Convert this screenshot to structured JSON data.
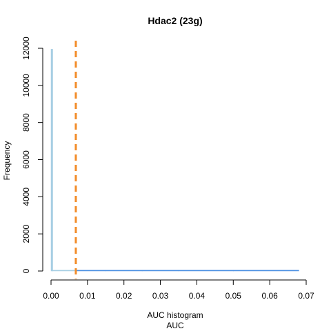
{
  "chart_data": {
    "type": "bar",
    "title": "Hdac2 (23g)",
    "xlabel": "AUC histogram",
    "xlabel_sub": "AUC",
    "ylabel": "Frequency",
    "xlim": [
      0,
      0.068
    ],
    "ylim": [
      0,
      12000
    ],
    "x_ticks": [
      "0.00",
      "0.01",
      "0.02",
      "0.03",
      "0.04",
      "0.05",
      "0.06",
      "0.07"
    ],
    "x_tick_values": [
      0,
      0.01,
      0.02,
      0.03,
      0.04,
      0.05,
      0.06,
      0.07
    ],
    "y_ticks": [
      "0",
      "2000",
      "4000",
      "6000",
      "8000",
      "10000",
      "12000"
    ],
    "y_tick_values": [
      0,
      2000,
      4000,
      6000,
      8000,
      10000,
      12000
    ],
    "threshold": 0.0068,
    "threshold_color": "#F28C28",
    "bins": [
      {
        "x0": 0.0,
        "x1": 0.0003,
        "value": 11950
      },
      {
        "x0": 0.0003,
        "x1": 0.0068,
        "value": 20
      },
      {
        "x0": 0.0068,
        "x1": 0.015,
        "value": 40
      },
      {
        "x0": 0.015,
        "x1": 0.025,
        "value": 30
      },
      {
        "x0": 0.025,
        "x1": 0.035,
        "value": 15
      },
      {
        "x0": 0.035,
        "x1": 0.05,
        "value": 8
      },
      {
        "x0": 0.05,
        "x1": 0.068,
        "value": 3
      }
    ],
    "bin_colors": {
      "below": "#A6CEE3",
      "above": "#4A90E2"
    },
    "grid": false
  }
}
